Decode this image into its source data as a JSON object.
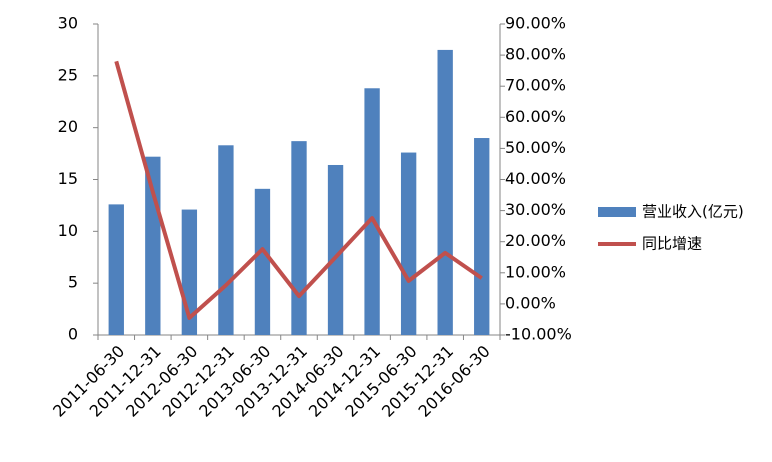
{
  "chart_data": {
    "type": "bar-line",
    "categories": [
      "2011-06-30",
      "2011-12-31",
      "2012-06-30",
      "2012-12-31",
      "2013-06-30",
      "2013-12-31",
      "2014-06-30",
      "2014-12-31",
      "2015-06-30",
      "2015-12-31",
      "2016-06-30"
    ],
    "series": [
      {
        "name": "营业收入(亿元)",
        "type": "bar",
        "color": "#4f81bd",
        "values": [
          12.6,
          17.2,
          12.1,
          18.3,
          14.1,
          18.7,
          16.4,
          23.8,
          17.6,
          27.5,
          19.0
        ]
      },
      {
        "name": "同比增速",
        "type": "line",
        "axis": "y2",
        "color": "#c0504d",
        "values": [
          78,
          36,
          -4.5,
          6,
          17.6,
          2.5,
          15,
          27.6,
          7.4,
          16.4,
          8.3
        ]
      }
    ],
    "ylim": [
      0,
      30
    ],
    "yticks": [
      0,
      5,
      10,
      15,
      20,
      25,
      30
    ],
    "y2lim": [
      -10,
      90
    ],
    "y2ticks": [
      {
        "value": -10,
        "label": "-10.00%"
      },
      {
        "value": 0,
        "label": "0.00%"
      },
      {
        "value": 10,
        "label": "10.00%"
      },
      {
        "value": 20,
        "label": "20.00%"
      },
      {
        "value": 30,
        "label": "30.00%"
      },
      {
        "value": 40,
        "label": "40.00%"
      },
      {
        "value": 50,
        "label": "50.00%"
      },
      {
        "value": 60,
        "label": "60.00%"
      },
      {
        "value": 70,
        "label": "70.00%"
      },
      {
        "value": 80,
        "label": "80.00%"
      },
      {
        "value": 90,
        "label": "90.00%"
      }
    ],
    "grid": false,
    "legend": "right"
  }
}
